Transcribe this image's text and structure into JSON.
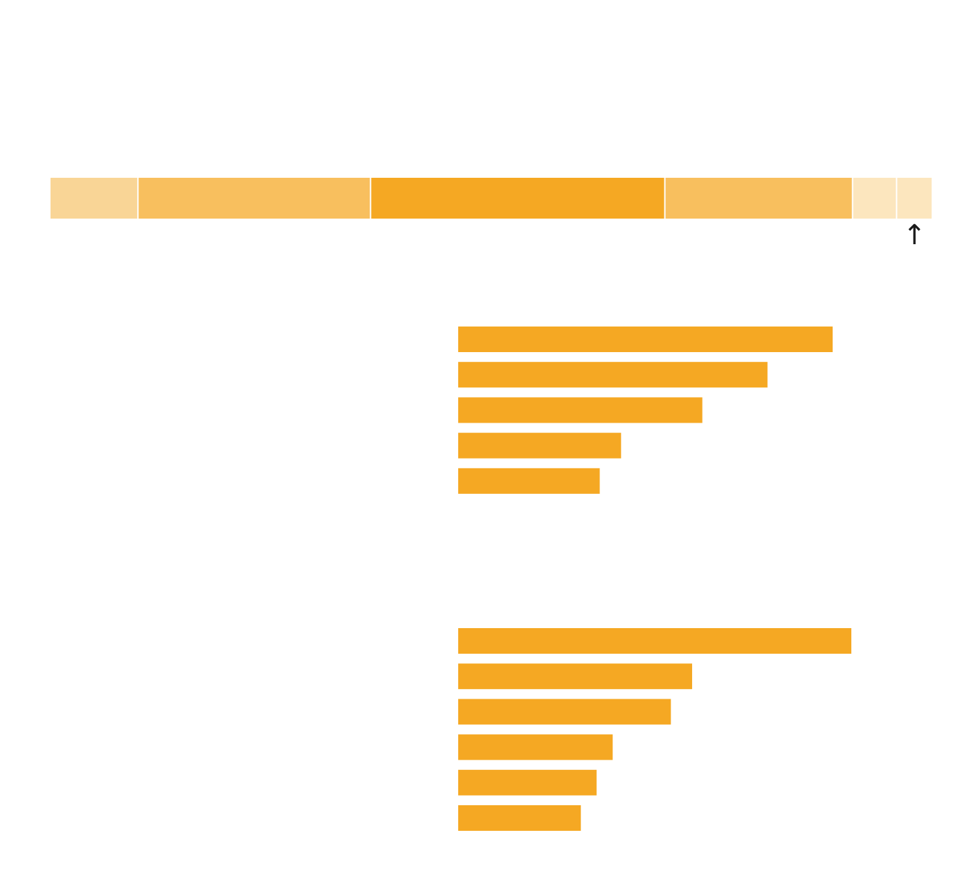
{
  "colors": {
    "accent": "#F5A823",
    "shade_1": "#F9D596",
    "shade_2": "#F8BF5E",
    "shade_3": "#F5A823",
    "shade_4": "#FCE6BE",
    "background": "#FFFFFF"
  },
  "marker": {
    "icon": "up-arrow-icon",
    "glyph": "↑"
  },
  "chart_data": [
    {
      "type": "stacked-bar",
      "orientation": "horizontal",
      "series": [
        {
          "values": [
            10
          ],
          "color": "#F9D596"
        },
        {
          "values": [
            26.4
          ],
          "color": "#F8BF5E"
        },
        {
          "values": [
            33.4
          ],
          "color": "#F5A823"
        },
        {
          "values": [
            21.3
          ],
          "color": "#F8BF5E"
        },
        {
          "values": [
            5
          ],
          "color": "#FCE6BE"
        },
        {
          "values": [
            3.9
          ],
          "color": "#FCE6BE"
        }
      ],
      "xlim": [
        0,
        100
      ],
      "grid": false,
      "marker_segment": 6
    },
    {
      "type": "bar",
      "orientation": "horizontal",
      "values": [
        100,
        82.6,
        65.2,
        43.5,
        37.8
      ],
      "xlim": [
        0,
        100
      ],
      "grid": false
    },
    {
      "type": "bar",
      "orientation": "horizontal",
      "values": [
        100,
        59.5,
        54.1,
        39.3,
        35.2,
        31.2
      ],
      "xlim": [
        0,
        100
      ],
      "grid": false
    }
  ]
}
